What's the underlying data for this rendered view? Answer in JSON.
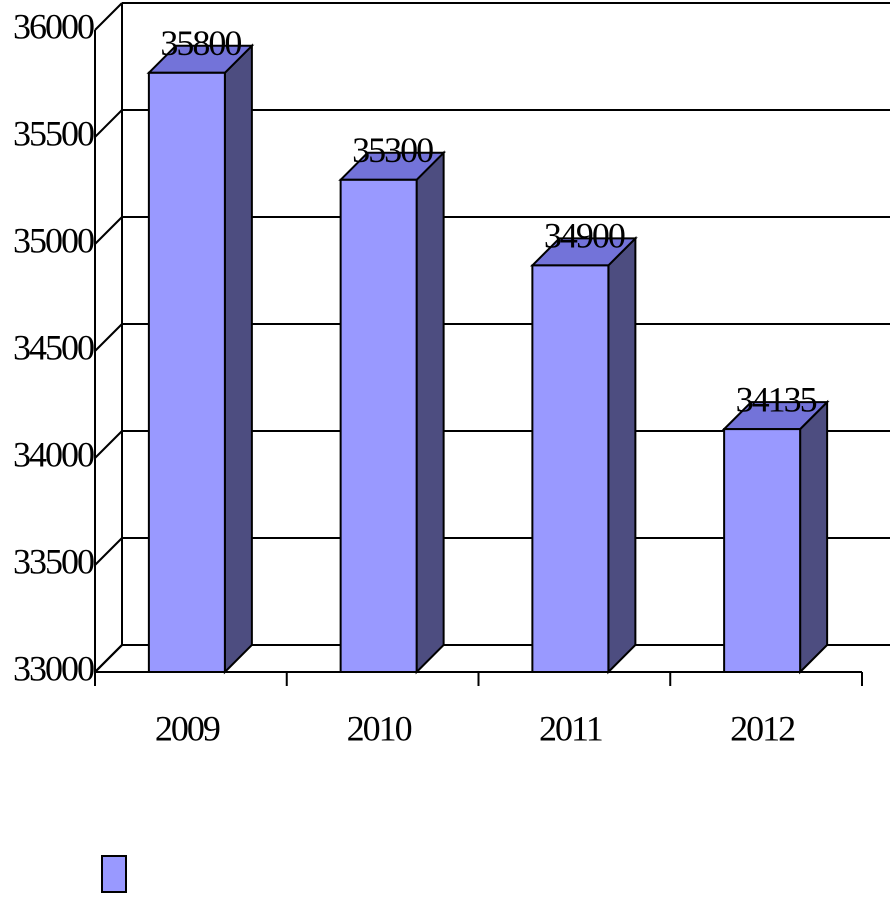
{
  "chart_data": {
    "type": "bar3d",
    "categories": [
      "2009",
      "2010",
      "2011",
      "2012"
    ],
    "values": [
      35800,
      35300,
      34900,
      34135
    ],
    "color": "#9999ff",
    "ylim": [
      33000,
      36000
    ],
    "yticks": [
      33000,
      33500,
      34000,
      34500,
      35000,
      35500,
      36000
    ],
    "grid": true,
    "legend": "bottom-left"
  }
}
